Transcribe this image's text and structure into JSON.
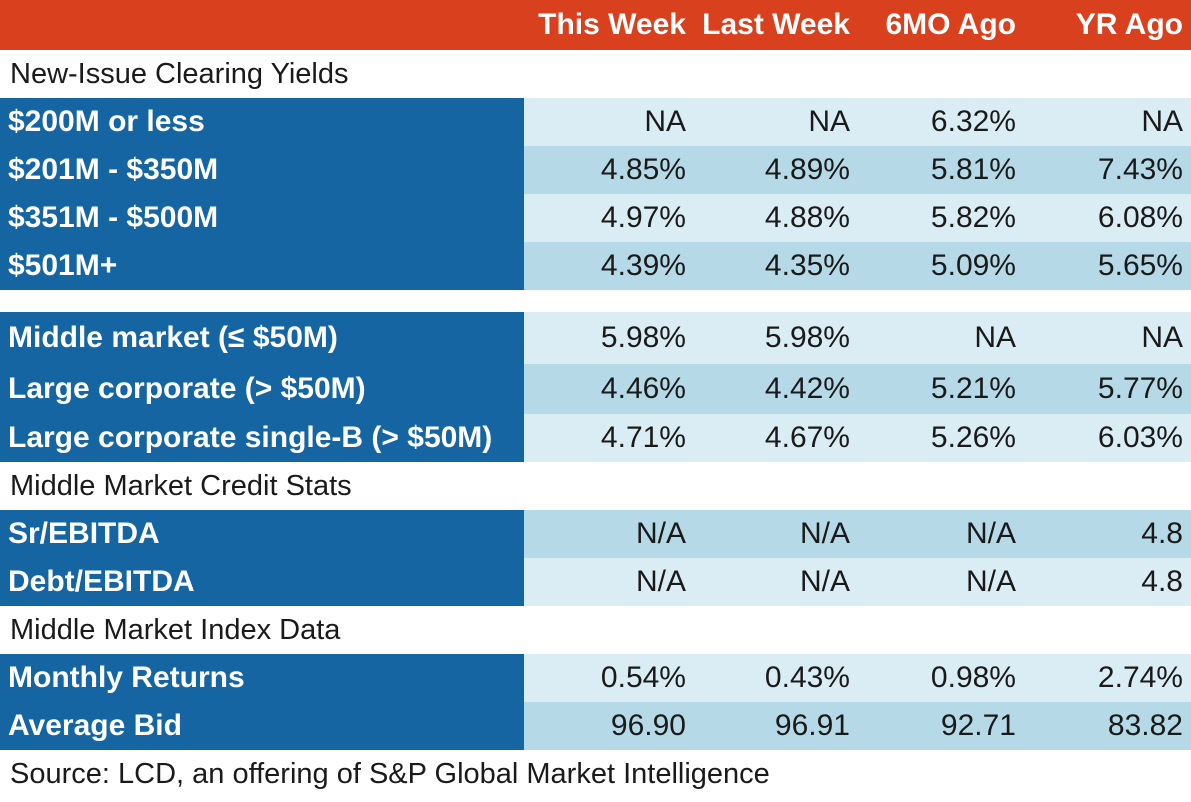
{
  "chart_data": {
    "type": "table",
    "colors": {
      "header_bg": "#d9401e",
      "label_bg": "#1565a3",
      "row_light": "#dbedf4",
      "row_mid": "#b5d9e6"
    },
    "columns": [
      "This Week",
      "Last Week",
      "6MO Ago",
      "YR Ago"
    ],
    "sections": {
      "new_issue": {
        "title": "New-Issue Clearing Yields",
        "rows": [
          {
            "label": "$200M or less",
            "values": [
              "NA",
              "NA",
              "6.32%",
              "NA"
            ]
          },
          {
            "label": "$201M - $350M",
            "values": [
              "4.85%",
              "4.89%",
              "5.81%",
              "7.43%"
            ]
          },
          {
            "label": "$351M - $500M",
            "values": [
              "4.97%",
              "4.88%",
              "5.82%",
              "6.08%"
            ]
          },
          {
            "label": "$501M+",
            "values": [
              "4.39%",
              "4.35%",
              "5.09%",
              "5.65%"
            ]
          }
        ]
      },
      "segments": {
        "rows": [
          {
            "label": "Middle market (≤ $50M)",
            "values": [
              "5.98%",
              "5.98%",
              "NA",
              "NA"
            ]
          },
          {
            "label": "Large corporate (> $50M)",
            "values": [
              "4.46%",
              "4.42%",
              "5.21%",
              "5.77%"
            ]
          },
          {
            "label": "Large corporate single-B (> $50M)",
            "values": [
              "4.71%",
              "4.67%",
              "5.26%",
              "6.03%"
            ]
          }
        ]
      },
      "credit_stats": {
        "title": "Middle Market Credit Stats",
        "rows": [
          {
            "label": "Sr/EBITDA",
            "values": [
              "N/A",
              "N/A",
              "N/A",
              "4.8"
            ]
          },
          {
            "label": "Debt/EBITDA",
            "values": [
              "N/A",
              "N/A",
              "N/A",
              "4.8"
            ]
          }
        ]
      },
      "index_data": {
        "title": "Middle Market Index Data",
        "rows": [
          {
            "label": "Monthly Returns",
            "values": [
              "0.54%",
              "0.43%",
              "0.98%",
              "2.74%"
            ]
          },
          {
            "label": "Average Bid",
            "values": [
              "96.90",
              "96.91",
              "92.71",
              "83.82"
            ]
          }
        ]
      }
    },
    "source": "Source: LCD, an offering of S&P Global Market Intelligence"
  }
}
